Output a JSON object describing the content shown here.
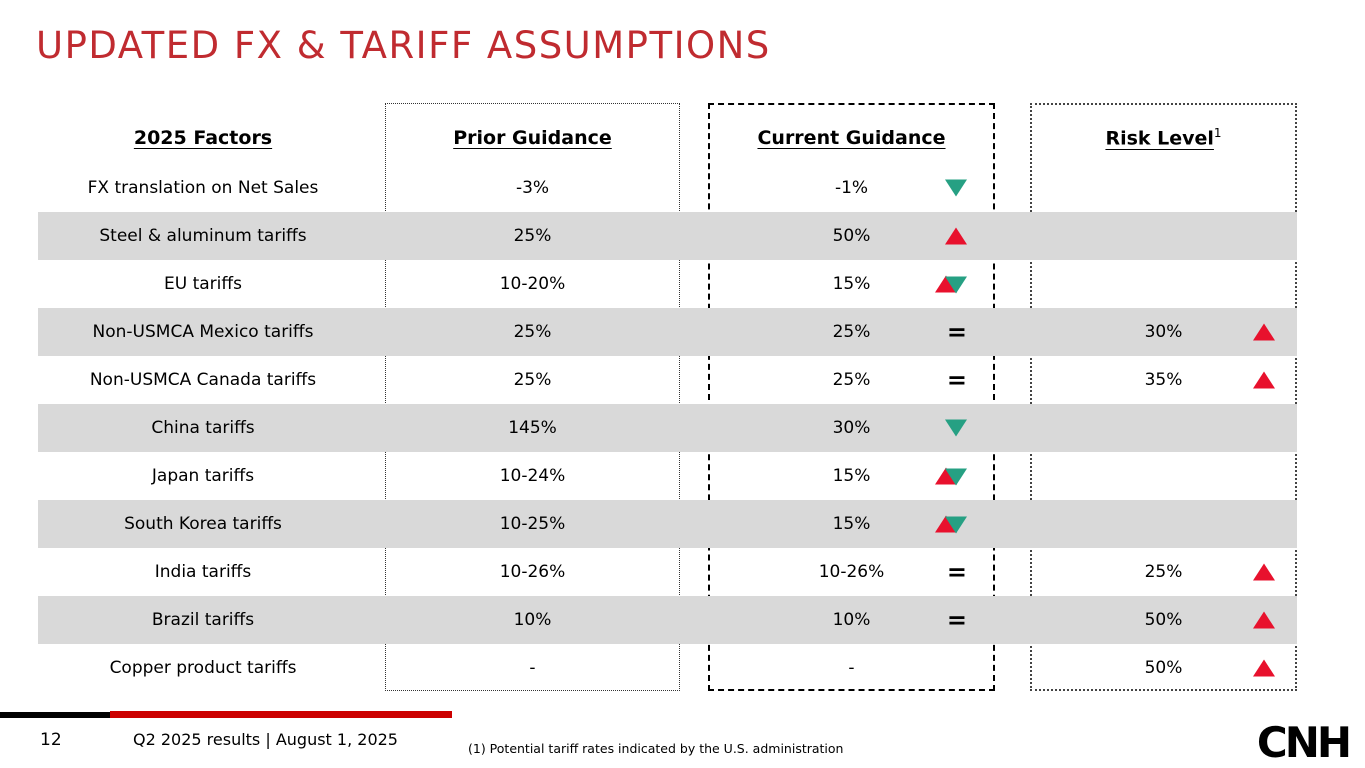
{
  "slide": {
    "title": "UPDATED FX & TARIFF ASSUMPTIONS",
    "page_number": "12",
    "footer_text": "Q2 2025 results | August 1, 2025",
    "footnote": "(1) Potential tariff rates indicated by the U.S. administration",
    "logo": "CNH"
  },
  "colors": {
    "title_red": "#C02B30",
    "accent_red": "#E8112D",
    "teal": "#26A083",
    "row_gray": "#D9D9D9",
    "bar_red": "#CC0000",
    "black": "#000000"
  },
  "table": {
    "headers": {
      "factors": "2025 Factors",
      "prior": "Prior Guidance",
      "current": "Current Guidance",
      "risk": "Risk Level",
      "risk_superscript": "1"
    },
    "equal_sign": "=",
    "rows": [
      {
        "factor": "FX translation on Net Sales",
        "prior": "-3%",
        "current": "-1%",
        "change": "down",
        "risk": ""
      },
      {
        "factor": "Steel & aluminum tariffs",
        "prior": "25%",
        "current": "50%",
        "change": "up",
        "risk": ""
      },
      {
        "factor": "EU tariffs",
        "prior": "10-20%",
        "current": "15%",
        "change": "up-down",
        "risk": ""
      },
      {
        "factor": "Non-USMCA Mexico tariffs",
        "prior": "25%",
        "current": "25%",
        "change": "equal",
        "risk": "30%"
      },
      {
        "factor": "Non-USMCA Canada tariffs",
        "prior": "25%",
        "current": "25%",
        "change": "equal",
        "risk": "35%"
      },
      {
        "factor": "China tariffs",
        "prior": "145%",
        "current": "30%",
        "change": "down",
        "risk": ""
      },
      {
        "factor": "Japan tariffs",
        "prior": "10-24%",
        "current": "15%",
        "change": "up-down",
        "risk": ""
      },
      {
        "factor": "South Korea tariffs",
        "prior": "10-25%",
        "current": "15%",
        "change": "up-down",
        "risk": ""
      },
      {
        "factor": "India tariffs",
        "prior": "10-26%",
        "current": "10-26%",
        "change": "equal",
        "risk": "25%"
      },
      {
        "factor": "Brazil tariffs",
        "prior": "10%",
        "current": "10%",
        "change": "equal",
        "risk": "50%"
      },
      {
        "factor": "Copper product tariffs",
        "prior": "-",
        "current": "-",
        "change": "none",
        "risk": "50%"
      }
    ]
  }
}
